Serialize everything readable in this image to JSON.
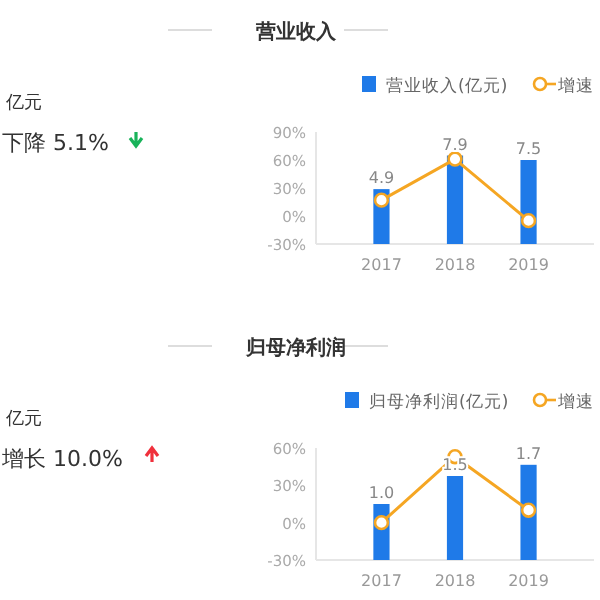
{
  "chart_data": [
    {
      "type": "bar",
      "title": "营业收入",
      "categories": [
        "2017",
        "2018",
        "2019"
      ],
      "series": [
        {
          "name": "营业收入(亿元)",
          "color": "#1f7ae8",
          "axis": "y2",
          "values": [
            4.9,
            7.9,
            7.5
          ],
          "value_labels": [
            "4.9",
            "7.9",
            "7.5"
          ]
        },
        {
          "type": "line",
          "name": "增速",
          "color": "#f5a623",
          "values": [
            17,
            61,
            -5
          ],
          "marker": "circle"
        }
      ],
      "ylim": [
        -30,
        90
      ],
      "yticks": [
        {
          "value": -30,
          "label": "-30%"
        },
        {
          "value": 0,
          "label": "0%"
        },
        {
          "value": 30,
          "label": "30%"
        },
        {
          "value": 60,
          "label": "60%"
        },
        {
          "value": 90,
          "label": "90%"
        }
      ],
      "y2lim": [
        0,
        10
      ],
      "legend": "top right",
      "annotations": [
        "亿元",
        "下降 5.1%"
      ]
    },
    {
      "type": "bar",
      "title": "归母净利润",
      "categories": [
        "2017",
        "2018",
        "2019"
      ],
      "series": [
        {
          "name": "归母净利润(亿元)",
          "color": "#1f7ae8",
          "axis": "y2",
          "values": [
            1.0,
            1.5,
            1.7
          ],
          "value_labels": [
            "1.0",
            "1.5",
            "1.7"
          ]
        },
        {
          "type": "line",
          "name": "增速",
          "color": "#f5a623",
          "values": [
            0,
            53,
            10
          ],
          "marker": "circle"
        }
      ],
      "ylim": [
        -30,
        60
      ],
      "yticks": [
        {
          "value": -30,
          "label": "-30%"
        },
        {
          "value": 0,
          "label": "0%"
        },
        {
          "value": 30,
          "label": "30%"
        },
        {
          "value": 60,
          "label": "60%"
        }
      ],
      "y2lim": [
        0,
        2
      ],
      "legend": "top right",
      "annotations": [
        "亿元",
        "增长 10.0%"
      ]
    }
  ]
}
